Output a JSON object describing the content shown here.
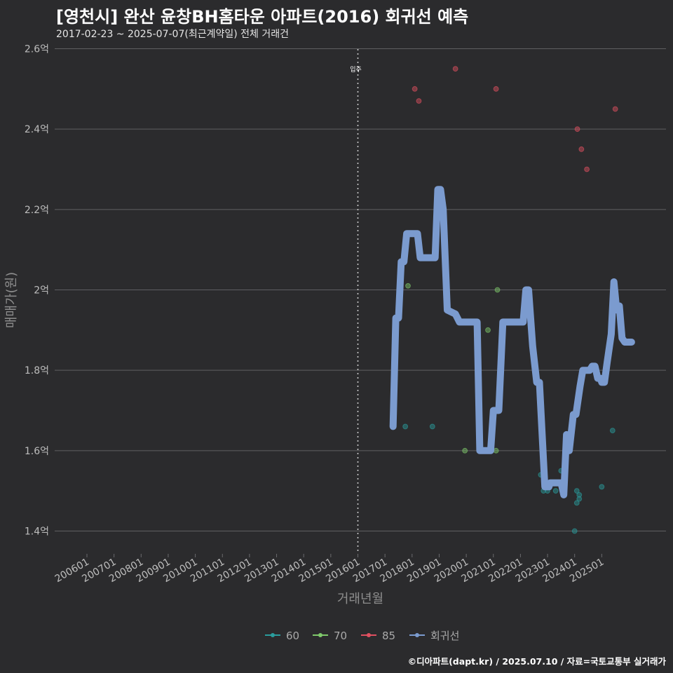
{
  "header": {
    "title": "[영천시] 완산 윤창BH홈타운 아파트(2016) 회귀선 예측",
    "subtitle": "2017-02-23 ~ 2025-07-07(최근계약일) 전체 거래건"
  },
  "caption": "©디아파트(dapt.kr) / 2025.07.10 / 자료=국토교통부 실거래가",
  "chart_data": {
    "type": "scatter",
    "xlabel": "거래년월",
    "ylabel": "매매가(원)",
    "x_ticks": [
      "200601",
      "200701",
      "200801",
      "200901",
      "201001",
      "201101",
      "201201",
      "201301",
      "201401",
      "201501",
      "201601",
      "201701",
      "201801",
      "201901",
      "202001",
      "202101",
      "202201",
      "202301",
      "202401",
      "202501"
    ],
    "ylim": [
      1.35,
      2.6
    ],
    "y_ticks": [
      {
        "value": 1.4,
        "label": "1.4억"
      },
      {
        "value": 1.6,
        "label": "1.6억"
      },
      {
        "value": 1.8,
        "label": "1.8억"
      },
      {
        "value": 2.0,
        "label": "2억"
      },
      {
        "value": 2.2,
        "label": "2.2억"
      },
      {
        "value": 2.4,
        "label": "2.4억"
      },
      {
        "value": 2.6,
        "label": "2.6억"
      }
    ],
    "grid": true,
    "legend_position": "bottom",
    "annotation": {
      "label": "입주",
      "x": 2016.0
    },
    "series": [
      {
        "name": "60",
        "color": "#2a9d9d",
        "points": [
          [
            2017.75,
            1.66
          ],
          [
            2018.75,
            1.66
          ],
          [
            2022.75,
            1.54
          ],
          [
            2022.85,
            1.5
          ],
          [
            2023.0,
            1.5
          ],
          [
            2023.3,
            1.5
          ],
          [
            2023.5,
            1.55
          ],
          [
            2024.0,
            1.4
          ],
          [
            2024.08,
            1.5
          ],
          [
            2024.08,
            1.47
          ],
          [
            2024.17,
            1.49
          ],
          [
            2024.17,
            1.48
          ],
          [
            2025.0,
            1.51
          ],
          [
            2025.4,
            1.65
          ]
        ]
      },
      {
        "name": "70",
        "color": "#7fc96b",
        "points": [
          [
            2017.85,
            2.01
          ],
          [
            2018.25,
            2.1
          ],
          [
            2019.95,
            1.6
          ],
          [
            2020.6,
            1.6
          ],
          [
            2020.8,
            1.9
          ],
          [
            2021.1,
            1.6
          ],
          [
            2021.15,
            2.0
          ]
        ]
      },
      {
        "name": "85",
        "color": "#e05060",
        "points": [
          [
            2018.1,
            2.5
          ],
          [
            2018.25,
            2.47
          ],
          [
            2019.6,
            2.55
          ],
          [
            2021.1,
            2.5
          ],
          [
            2024.1,
            2.4
          ],
          [
            2024.25,
            2.35
          ],
          [
            2024.45,
            2.3
          ],
          [
            2025.5,
            2.45
          ]
        ]
      },
      {
        "name": "회귀선",
        "color": "#7b9bcf",
        "line": [
          [
            2017.3,
            1.66
          ],
          [
            2017.4,
            1.93
          ],
          [
            2017.5,
            1.93
          ],
          [
            2017.6,
            2.07
          ],
          [
            2017.7,
            2.07
          ],
          [
            2017.8,
            2.14
          ],
          [
            2018.1,
            2.14
          ],
          [
            2018.2,
            2.14
          ],
          [
            2018.3,
            2.08
          ],
          [
            2018.85,
            2.08
          ],
          [
            2018.95,
            2.25
          ],
          [
            2019.05,
            2.25
          ],
          [
            2019.15,
            2.2
          ],
          [
            2019.3,
            1.95
          ],
          [
            2019.6,
            1.94
          ],
          [
            2019.75,
            1.92
          ],
          [
            2020.4,
            1.92
          ],
          [
            2020.5,
            1.6
          ],
          [
            2020.9,
            1.6
          ],
          [
            2021.0,
            1.7
          ],
          [
            2021.2,
            1.7
          ],
          [
            2021.35,
            1.92
          ],
          [
            2022.1,
            1.92
          ],
          [
            2022.2,
            2.0
          ],
          [
            2022.3,
            2.0
          ],
          [
            2022.45,
            1.86
          ],
          [
            2022.6,
            1.77
          ],
          [
            2022.7,
            1.77
          ],
          [
            2022.9,
            1.51
          ],
          [
            2023.05,
            1.51
          ],
          [
            2023.1,
            1.52
          ],
          [
            2023.4,
            1.52
          ],
          [
            2023.5,
            1.52
          ],
          [
            2023.6,
            1.49
          ],
          [
            2023.7,
            1.64
          ],
          [
            2023.8,
            1.6
          ],
          [
            2023.95,
            1.69
          ],
          [
            2024.05,
            1.69
          ],
          [
            2024.2,
            1.76
          ],
          [
            2024.3,
            1.8
          ],
          [
            2024.55,
            1.8
          ],
          [
            2024.65,
            1.81
          ],
          [
            2024.75,
            1.81
          ],
          [
            2024.85,
            1.78
          ],
          [
            2024.95,
            1.78
          ],
          [
            2025.0,
            1.77
          ],
          [
            2025.1,
            1.77
          ],
          [
            2025.2,
            1.82
          ],
          [
            2025.35,
            1.89
          ],
          [
            2025.45,
            2.02
          ],
          [
            2025.55,
            1.95
          ],
          [
            2025.65,
            1.96
          ],
          [
            2025.75,
            1.88
          ],
          [
            2025.85,
            1.87
          ],
          [
            2026.1,
            1.87
          ]
        ]
      }
    ]
  }
}
